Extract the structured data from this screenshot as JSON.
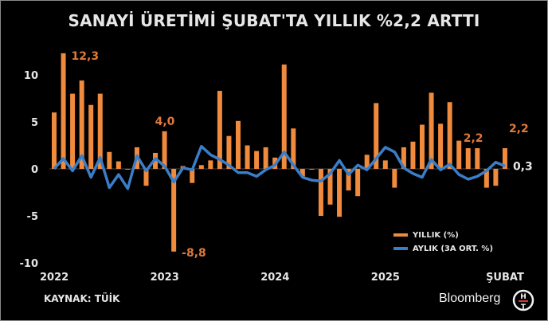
{
  "title": "SANAYİ ÜRETİMİ ŞUBAT'TA YILLIK %2,2 ARTTI",
  "source": "KAYNAK: TÜİK",
  "brand": "Bloomberg",
  "brand_logo": "HT",
  "colors": {
    "background": "#000000",
    "bar": "#f08a3c",
    "line": "#3a7ec8",
    "annotation": "#e0793a",
    "text": "#e6e6e6"
  },
  "legend": [
    {
      "label": "YILLIK (%)",
      "color": "#f08a3c"
    },
    {
      "label": "AYLIK (3A ORT. %)",
      "color": "#3a7ec8"
    }
  ],
  "annotations": [
    {
      "label": "12,3",
      "index": 1
    },
    {
      "label": "4,0",
      "index": 12
    },
    {
      "label": "-8,8",
      "index": 13
    },
    {
      "label": "2,2",
      "index": 45
    },
    {
      "label": "2,2",
      "index": 49
    },
    {
      "label": "0,3",
      "index": 49,
      "series": "line"
    }
  ],
  "chart_data": {
    "type": "bar",
    "title": "SANAYİ ÜRETİMİ ŞUBAT'TA YILLIK %2,2 ARTTI",
    "xlabel": "",
    "ylabel": "",
    "ylim": [
      -10,
      13
    ],
    "yticks": [
      10,
      5,
      0,
      -5,
      -10
    ],
    "xtick_labels": [
      "2022",
      "2023",
      "2024",
      "2025",
      "ŞUBAT"
    ],
    "grid": false,
    "legend_position": "lower right",
    "categories": [
      "2022-01",
      "2022-02",
      "2022-03",
      "2022-04",
      "2022-05",
      "2022-06",
      "2022-07",
      "2022-08",
      "2022-09",
      "2022-10",
      "2022-11",
      "2022-12",
      "2023-01",
      "2023-02",
      "2023-03",
      "2023-04",
      "2023-05",
      "2023-06",
      "2023-07",
      "2023-08",
      "2023-09",
      "2023-10",
      "2023-11",
      "2023-12",
      "2024-01",
      "2024-02",
      "2024-03",
      "2024-04",
      "2024-05",
      "2024-06",
      "2024-07",
      "2024-08",
      "2024-09",
      "2024-10",
      "2024-11",
      "2024-12",
      "2025-01",
      "2025-02",
      "2025-03",
      "2025-04",
      "2025-05",
      "2025-06",
      "2025-07",
      "2025-08",
      "2025-09",
      "2025-10",
      "2025-11",
      "2025-12",
      "2026-01",
      "2026-02"
    ],
    "series": [
      {
        "name": "YILLIK (%)",
        "type": "bar",
        "values": [
          6.0,
          12.3,
          8.0,
          9.4,
          6.8,
          8.0,
          1.8,
          0.8,
          0.0,
          2.3,
          -1.8,
          1.7,
          4.0,
          -8.8,
          0.3,
          -1.5,
          0.4,
          0.9,
          8.3,
          3.5,
          5.1,
          2.5,
          1.9,
          2.3,
          1.2,
          11.1,
          4.3,
          -0.8,
          0.0,
          -5.0,
          -3.8,
          -5.1,
          -2.3,
          -2.9,
          1.5,
          7.0,
          0.9,
          -2.0,
          2.3,
          2.9,
          4.7,
          8.1,
          4.8,
          7.1,
          3.0,
          2.2,
          2.2,
          -2.0,
          -1.8,
          2.2
        ]
      },
      {
        "name": "AYLIK (3A ORT. %)",
        "type": "line",
        "values": [
          0.0,
          1.1,
          -0.2,
          1.4,
          -0.9,
          1.2,
          -2.0,
          -0.6,
          -2.1,
          1.4,
          -0.2,
          1.1,
          0.3,
          -1.4,
          0.1,
          -0.1,
          2.4,
          1.5,
          1.0,
          0.4,
          -0.4,
          -0.4,
          -0.8,
          -0.1,
          0.4,
          1.8,
          0.4,
          -0.9,
          -1.2,
          -1.3,
          -0.5,
          0.9,
          -0.6,
          0.4,
          -0.1,
          1.1,
          2.3,
          1.8,
          0.1,
          -0.5,
          -0.9,
          1.0,
          -0.1,
          0.5,
          -0.6,
          -1.1,
          -0.8,
          -0.2,
          0.7,
          0.3
        ]
      }
    ]
  }
}
